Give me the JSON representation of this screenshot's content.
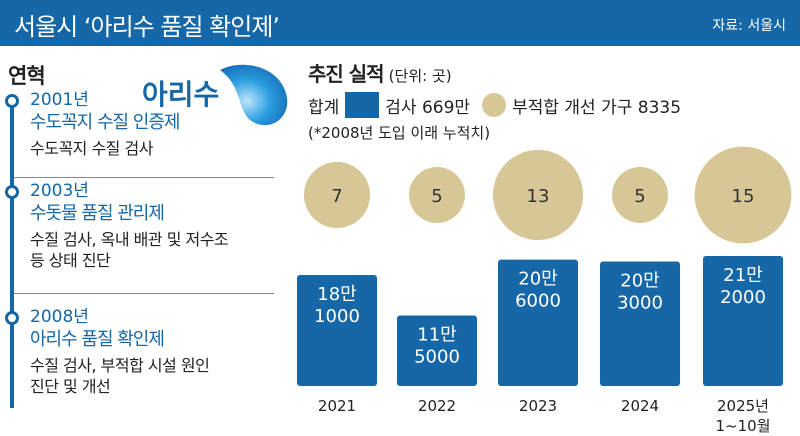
{
  "header": {
    "title": "서울시 ‘아리수 품질 확인제’",
    "source": "자료: 서울시"
  },
  "history": {
    "title": "연혁",
    "logo_text": "아리수",
    "entries": [
      {
        "year": "2001년",
        "name": "수도꼭지 수질 인증제",
        "desc": [
          "수도꼭지 수질 검사"
        ]
      },
      {
        "year": "2003년",
        "name": "수돗물 품질 관리제",
        "desc": [
          "수질 검사, 옥내 배관 및 저수조",
          "등 상태 진단"
        ]
      },
      {
        "year": "2008년",
        "name": "아리수 품질 확인제",
        "desc": [
          "수질 검사, 부적합 시설 원인",
          "진단 및 개선"
        ]
      }
    ]
  },
  "performance": {
    "title": "추진 실적",
    "unit": "(단위: 곳)",
    "legend_prefix": "합계",
    "legend_inspect": "검사 669만",
    "legend_improve": "부적합 개선 가구 8335",
    "note": "(*2008년 도입 이래 누적치)"
  },
  "colors": {
    "header": "#1567a8",
    "bar": "#1567a8",
    "circle": "#d8c796"
  },
  "chart_data": {
    "type": "bar",
    "categories": [
      [
        "2021"
      ],
      [
        "2022"
      ],
      [
        "2023"
      ],
      [
        "2024"
      ],
      [
        "2025년",
        "1~10월"
      ]
    ],
    "series": [
      {
        "name": "검사",
        "values": [
          181000,
          115000,
          206000,
          203000,
          212000
        ],
        "labels": [
          [
            "18만",
            "1000"
          ],
          [
            "11만",
            "5000"
          ],
          [
            "20만",
            "6000"
          ],
          [
            "20만",
            "3000"
          ],
          [
            "21만",
            "2000"
          ]
        ]
      },
      {
        "name": "부적합 개선 가구",
        "values": [
          7,
          5,
          13,
          5,
          15
        ]
      }
    ]
  }
}
